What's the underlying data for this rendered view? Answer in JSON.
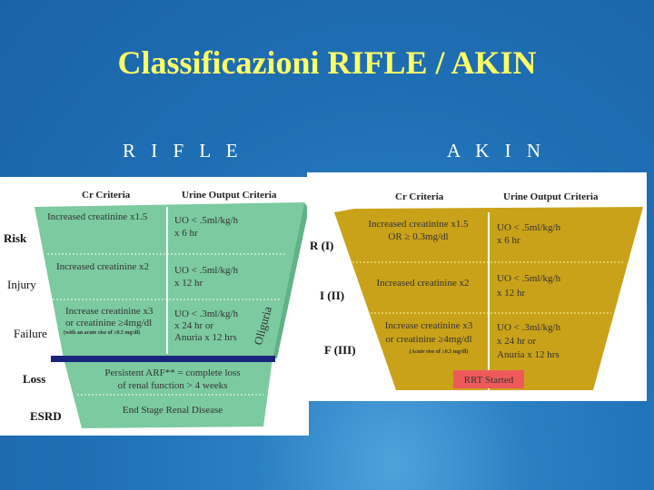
{
  "title": "Classificazioni RIFLE / AKIN",
  "rifle": {
    "heading": "R I F L E",
    "col_cr": "Cr Criteria",
    "col_uo": "Urine Output Criteria",
    "colors": {
      "funnel": "#7ccaa0",
      "bar": "#1a237e"
    },
    "oliguria": "Oliguria",
    "rows": [
      {
        "label": "Risk",
        "cr": [
          "Increased creatinine x1.5"
        ],
        "uo": [
          "UO < .5ml/kg/h",
          "x 6 hr"
        ]
      },
      {
        "label": "Injury",
        "cr": [
          "Increased creatinine x2"
        ],
        "uo": [
          "UO < .5ml/kg/h",
          "x 12 hr"
        ]
      },
      {
        "label": "Failure",
        "cr": [
          "Increase creatinine x3",
          "or creatinine ≥4mg/dl"
        ],
        "note": "(with an acute rise of ≥0.5 mg/dl)",
        "uo": [
          "UO < .3ml/kg/h",
          "x 24 hr or",
          "Anuria x 12 hrs"
        ]
      },
      {
        "label": "Loss",
        "text": [
          "Persistent ARF** = complete loss",
          "of renal function > 4 weeks"
        ]
      },
      {
        "label": "ESRD",
        "text": [
          "End Stage Renal Disease"
        ]
      }
    ]
  },
  "akin": {
    "heading": "A K I N",
    "col_cr": "Cr Criteria",
    "col_uo": "Urine Output Criteria",
    "colors": {
      "funnel": "#c9a21a",
      "rrt": "#ee5a5a"
    },
    "rows": [
      {
        "label": "R (I)",
        "cr": [
          "Increased creatinine x1.5",
          "OR ≥ 0.3mg/dl"
        ],
        "uo": [
          "UO < .5ml/kg/h",
          "x 6 hr"
        ]
      },
      {
        "label": "I (II)",
        "cr": [
          "Increased creatinine x2"
        ],
        "uo": [
          "UO < .5ml/kg/h",
          "x 12 hr"
        ]
      },
      {
        "label": "F (III)",
        "cr": [
          "Increase creatinine x3",
          "or creatinine ≥4mg/dl"
        ],
        "note": "(Acute rise of ≥0.5 mg/dl)",
        "uo": [
          "UO < .3ml/kg/h",
          "x 24 hr or",
          "Anuria x 12 hrs"
        ]
      }
    ],
    "rrt": "RRT Started"
  }
}
